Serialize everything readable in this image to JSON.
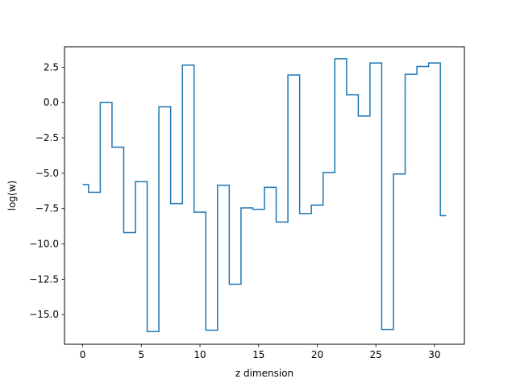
{
  "chart_data": {
    "type": "line",
    "drawstyle": "steps-mid",
    "title": "",
    "xlabel": "z dimension",
    "ylabel": "log(w)",
    "xlim": [
      -1.55,
      32.55
    ],
    "ylim": [
      -17.1,
      3.95
    ],
    "xticks": [
      0,
      5,
      10,
      15,
      20,
      25,
      30
    ],
    "xtick_labels": [
      "0",
      "5",
      "10",
      "15",
      "20",
      "25",
      "30"
    ],
    "yticks": [
      2.5,
      0.0,
      -2.5,
      -5.0,
      -7.5,
      -10.0,
      -12.5,
      -15.0
    ],
    "ytick_labels": [
      "2.5",
      "0.0",
      "−2.5",
      "−5.0",
      "−7.5",
      "−10.0",
      "−12.5",
      "−15.0"
    ],
    "grid": false,
    "legend": false,
    "series": [
      {
        "color": "#1f77b4",
        "x": [
          0,
          1,
          2,
          3,
          4,
          5,
          6,
          7,
          8,
          9,
          10,
          11,
          12,
          13,
          14,
          15,
          16,
          17,
          18,
          19,
          20,
          21,
          22,
          23,
          24,
          25,
          26,
          27,
          28,
          29,
          30,
          31
        ],
        "y": [
          -5.8,
          -6.35,
          0.0,
          -3.15,
          -9.2,
          -5.6,
          -16.2,
          -0.3,
          -7.15,
          2.65,
          -7.75,
          -16.1,
          -5.85,
          -12.85,
          -7.45,
          -7.55,
          -6.0,
          -8.45,
          1.95,
          -7.85,
          -7.25,
          -4.95,
          3.1,
          0.55,
          -0.95,
          2.8,
          -16.05,
          -5.05,
          2.0,
          2.55,
          2.8,
          -8.0
        ]
      }
    ]
  }
}
